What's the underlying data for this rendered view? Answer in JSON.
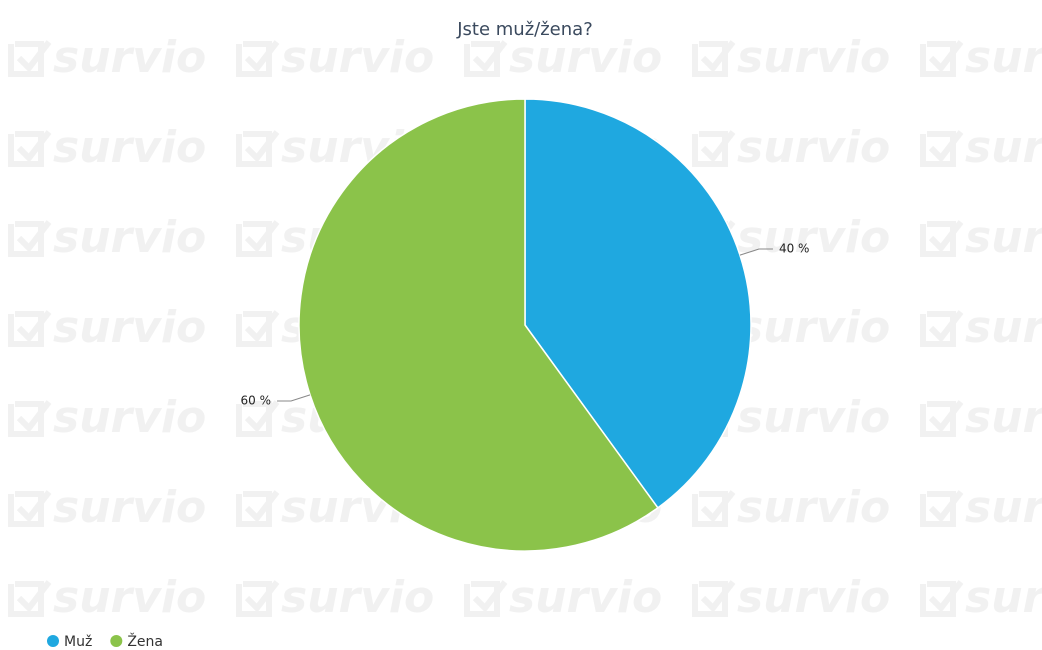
{
  "chart_data": {
    "type": "pie",
    "title": "Jste muž/žena?",
    "watermark": "survio",
    "categories": [
      "Muž",
      "Žena"
    ],
    "values": [
      40,
      60
    ],
    "value_labels": [
      "40 %",
      "60 %"
    ],
    "colors": [
      "#1fa8e0",
      "#8bc34a"
    ],
    "legend": "bottom-left"
  }
}
